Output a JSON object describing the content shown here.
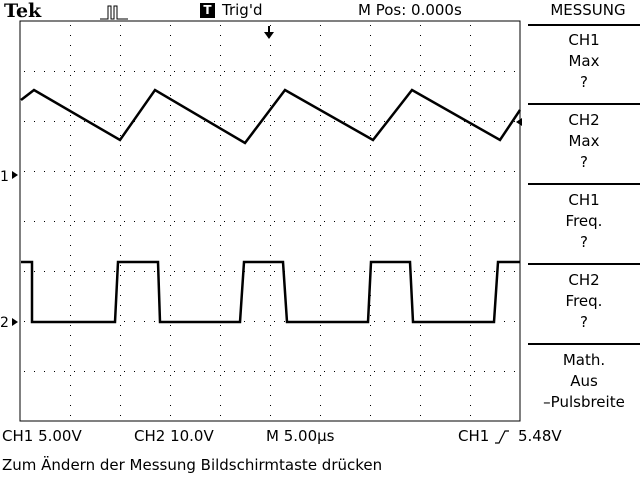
{
  "header": {
    "brand": "Tek",
    "trigger_badge": "T",
    "trigger_status": "Trig'd",
    "m_pos": "M Pos: 0.000s"
  },
  "menu": {
    "title": "MESSUNG",
    "buttons": [
      {
        "line1": "CH1",
        "line2": "Max",
        "line3": "?"
      },
      {
        "line1": "CH2",
        "line2": "Max",
        "line3": "?"
      },
      {
        "line1": "CH1",
        "line2": "Freq.",
        "line3": "?"
      },
      {
        "line1": "CH2",
        "line2": "Freq.",
        "line3": "?"
      },
      {
        "line1": "Math.",
        "line2": "Aus",
        "line3": "–Pulsbreite"
      }
    ]
  },
  "channels": {
    "ch1_marker": "1",
    "ch2_marker": "2"
  },
  "status": {
    "ch1_scale": "CH1  5.00V",
    "ch2_scale": "CH2  10.0V",
    "timebase": "M 5.00µs",
    "trigger_source": "CH1",
    "trigger_level": "5.48V",
    "hint": "Zum Ändern der Messung Bildschirmtaste drücken"
  },
  "colors": {
    "background": "#ffffff",
    "foreground": "#000000"
  }
}
